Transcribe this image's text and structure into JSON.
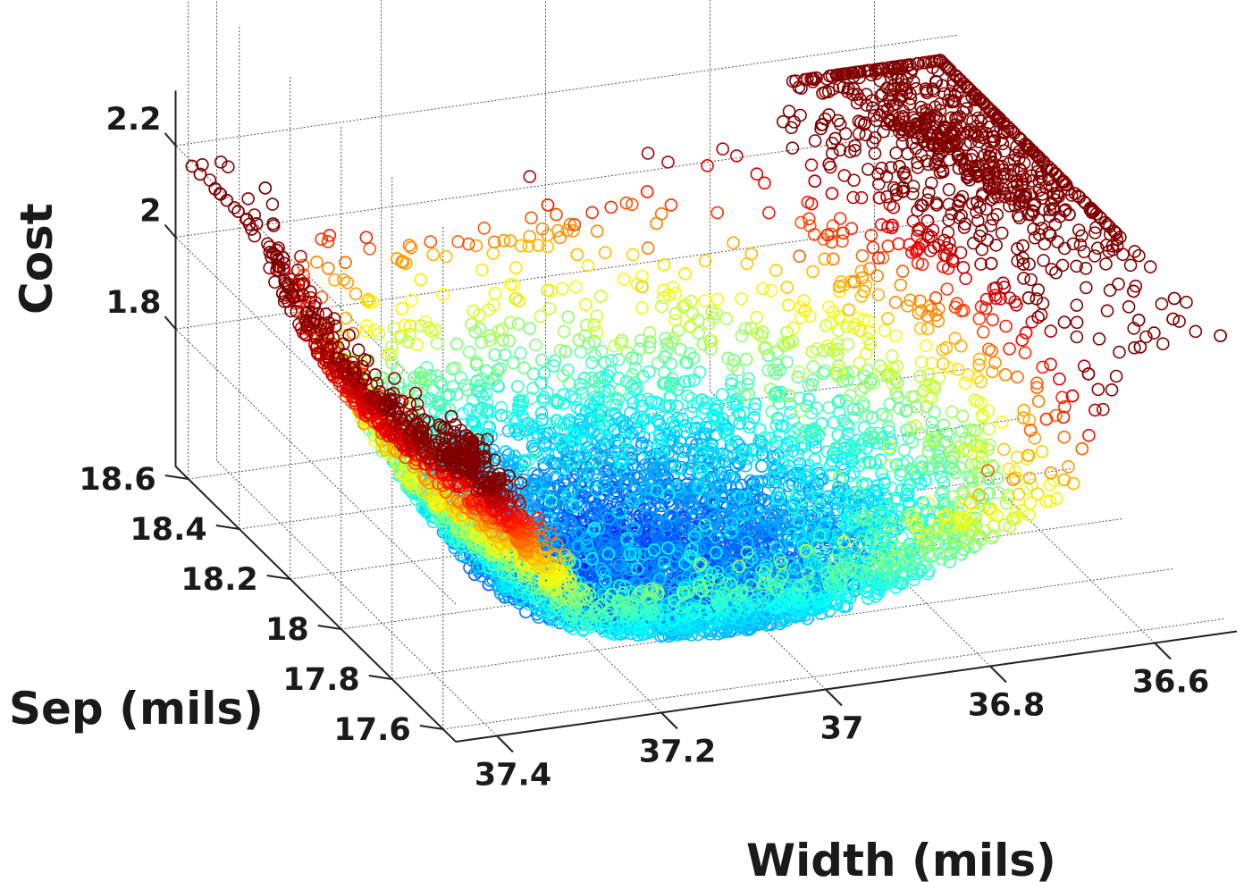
{
  "chart_data": {
    "type": "scatter",
    "title": "",
    "xlabel": "Width (mils)",
    "ylabel": "Sep (mils)",
    "zlabel": "Cost",
    "xlim": [
      36.5,
      37.45
    ],
    "ylim": [
      17.55,
      18.65
    ],
    "zlim": [
      1.5,
      2.35
    ],
    "x_ticks": [
      "37.4",
      "37.2",
      "37",
      "36.8",
      "36.6"
    ],
    "x_tick_values": [
      37.4,
      37.2,
      37.0,
      36.8,
      36.6
    ],
    "y_ticks": [
      "17.6",
      "17.8",
      "18",
      "18.2",
      "18.4",
      "18.6"
    ],
    "y_tick_values": [
      17.6,
      17.8,
      18.0,
      18.2,
      18.4,
      18.6
    ],
    "z_ticks": [
      "1.8",
      "2",
      "2.2"
    ],
    "z_tick_values": [
      1.8,
      2.0,
      2.2
    ],
    "marker": "open-circle",
    "colormap": "jet",
    "grid": true,
    "point_count": 9000,
    "distribution": {
      "min_cost": 1.55,
      "min_at": {
        "x": 37.1,
        "y": 17.95
      },
      "cost_bowl": "cost rises with distance from the minimum; highest (red) at the high-Sep edge near Width 36.6 and the low-Sep end near Width 37.4"
    },
    "colors": {
      "low": "#00008f",
      "mid": "#00bfff",
      "high": "#ff0000"
    }
  }
}
